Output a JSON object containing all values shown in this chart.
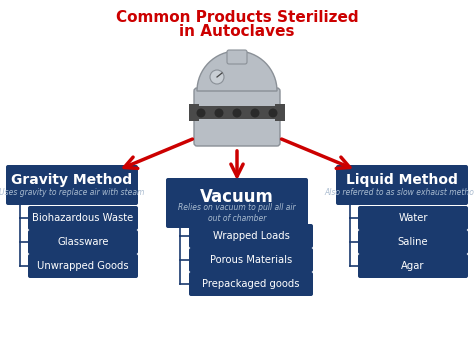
{
  "title_line1": "Common Products Sterilized",
  "title_line2": "in Autoclaves",
  "title_color": "#cc0000",
  "background_color": "#ffffff",
  "box_color": "#1a3a6e",
  "box_text_color": "#ffffff",
  "connector_color": "#1a3a6e",
  "arrow_color": "#cc0000",
  "autoclave_body_color": "#b8bec5",
  "autoclave_band_color": "#4a4a4a",
  "gravity_title": "Gravity Method",
  "gravity_subtitle": "Uses gravity to replace air with steam",
  "gravity_items": [
    "Biohazardous Waste",
    "Glassware",
    "Unwrapped Goods"
  ],
  "vacuum_title": "Vacuum",
  "vacuum_subtitle": "Relies on vacuum to pull all air\nout of chamber",
  "vacuum_items": [
    "Wrapped Loads",
    "Porous Materials",
    "Prepackaged goods"
  ],
  "liquid_title": "Liquid Method",
  "liquid_subtitle": "Also referred to as slow exhaust method",
  "liquid_items": [
    "Water",
    "Saline",
    "Agar"
  ],
  "figsize": [
    4.74,
    3.38
  ],
  "dpi": 100
}
